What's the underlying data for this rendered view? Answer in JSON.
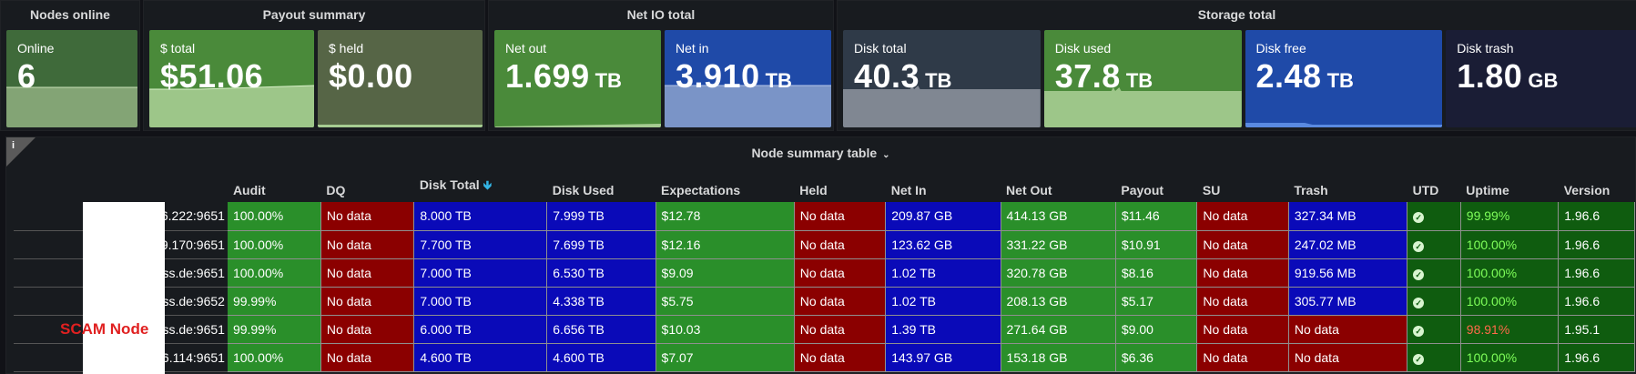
{
  "stats": {
    "nodes_online": {
      "title": "Nodes online",
      "tiles": [
        {
          "label": "Online",
          "value": "6",
          "unit": ""
        }
      ]
    },
    "payout_summary": {
      "title": "Payout summary",
      "tiles": [
        {
          "label": "$ total",
          "value": "$51.06",
          "unit": ""
        },
        {
          "label": "$ held",
          "value": "$0.00",
          "unit": ""
        }
      ]
    },
    "net_io_total": {
      "title": "Net IO total",
      "tiles": [
        {
          "label": "Net out",
          "value": "1.699",
          "unit": "TB"
        },
        {
          "label": "Net in",
          "value": "3.910",
          "unit": "TB"
        }
      ]
    },
    "storage_total": {
      "title": "Storage total",
      "tiles": [
        {
          "label": "Disk total",
          "value": "40.3",
          "unit": "TB"
        },
        {
          "label": "Disk used",
          "value": "37.8",
          "unit": "TB"
        },
        {
          "label": "Disk free",
          "value": "2.48",
          "unit": "TB"
        },
        {
          "label": "Disk trash",
          "value": "1.80",
          "unit": "GB"
        }
      ]
    }
  },
  "colors": {
    "green_tile": "#4a8a3a",
    "olive_tile": "#5a6a45",
    "blue_tile": "#1f4aa8",
    "slate_tile": "#2f3a48",
    "dark_tile": "#1a1d35"
  },
  "table": {
    "title": "Node summary table",
    "info_icon": "i",
    "sort_icon": "arrow-down-icon",
    "columns": [
      "Audit",
      "DQ",
      "Disk Total",
      "Disk Used",
      "Expectations",
      "Held",
      "Net In",
      "Net Out",
      "Payout",
      "SU",
      "Trash",
      "UTD",
      "Uptime",
      "Version"
    ],
    "rows": [
      {
        "node": "6.222:9651",
        "audit": "100.00%",
        "dq": "No data",
        "disk_total": "8.000 TB",
        "disk_used": "7.999 TB",
        "expectations": "$12.78",
        "held": "No data",
        "net_in": "209.87 GB",
        "net_out": "414.13 GB",
        "payout": "$11.46",
        "su": "No data",
        "trash": "327.34 MB",
        "uptime": "99.99%",
        "version": "1.96.6"
      },
      {
        "node": "9.170:9651",
        "audit": "100.00%",
        "dq": "No data",
        "disk_total": "7.700 TB",
        "disk_used": "7.699 TB",
        "expectations": "$12.16",
        "held": "No data",
        "net_in": "123.62 GB",
        "net_out": "331.22 GB",
        "payout": "$10.91",
        "su": "No data",
        "trash": "247.02 MB",
        "uptime": "100.00%",
        "version": "1.96.6"
      },
      {
        "node": "ss.de:9651",
        "audit": "100.00%",
        "dq": "No data",
        "disk_total": "7.000 TB",
        "disk_used": "6.530 TB",
        "expectations": "$9.09",
        "held": "No data",
        "net_in": "1.02 TB",
        "net_out": "320.78 GB",
        "payout": "$8.16",
        "su": "No data",
        "trash": "919.56 MB",
        "uptime": "100.00%",
        "version": "1.96.6"
      },
      {
        "node": "ss.de:9652",
        "audit": "99.99%",
        "dq": "No data",
        "disk_total": "7.000 TB",
        "disk_used": "4.338 TB",
        "expectations": "$5.75",
        "held": "No data",
        "net_in": "1.02 TB",
        "net_out": "208.13 GB",
        "payout": "$5.17",
        "su": "No data",
        "trash": "305.77 MB",
        "uptime": "100.00%",
        "version": "1.96.6"
      },
      {
        "node": "ss.de:9651",
        "audit": "99.99%",
        "dq": "No data",
        "disk_total": "6.000 TB",
        "disk_used": "6.656 TB",
        "expectations": "$10.03",
        "held": "No data",
        "net_in": "1.39 TB",
        "net_out": "271.64 GB",
        "payout": "$9.00",
        "su": "No data",
        "trash": "No data",
        "uptime": "98.91%",
        "version": "1.95.1"
      },
      {
        "node": "6.114:9651",
        "audit": "100.00%",
        "dq": "No data",
        "disk_total": "4.600 TB",
        "disk_used": "4.600 TB",
        "expectations": "$7.07",
        "held": "No data",
        "net_in": "143.97 GB",
        "net_out": "153.18 GB",
        "payout": "$6.36",
        "su": "No data",
        "trash": "No data",
        "uptime": "100.00%",
        "version": "1.96.6"
      }
    ]
  },
  "annotation": {
    "scam_label": "SCAM Node"
  }
}
